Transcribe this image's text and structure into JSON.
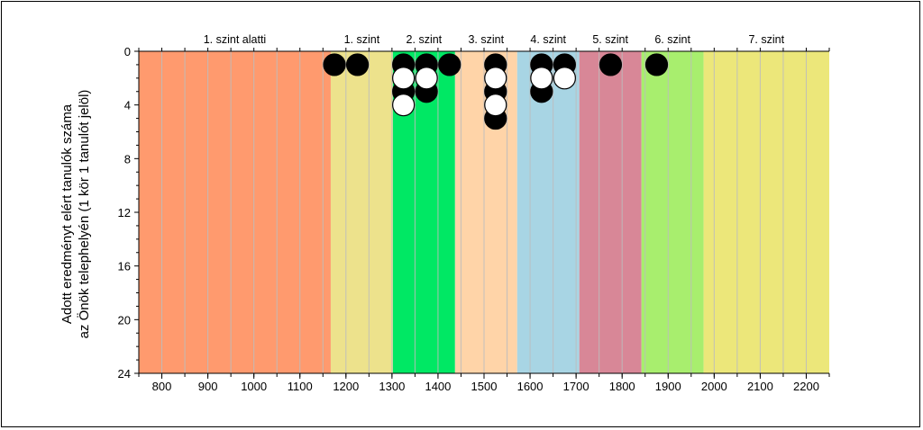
{
  "chart_data": {
    "type": "scatter",
    "title": "",
    "ylabel_lines": [
      "Adott eredményt elért tanulók száma",
      "az Önök telephelyén (1 kör 1 tanulót jelöl)"
    ],
    "xlabel": "",
    "xlim": [
      750,
      2250
    ],
    "ylim": [
      24,
      0
    ],
    "x_ticks": [
      800,
      900,
      1000,
      1100,
      1200,
      1300,
      1400,
      1500,
      1600,
      1700,
      1800,
      1900,
      2000,
      2100,
      2200
    ],
    "y_ticks": [
      0,
      4,
      8,
      12,
      16,
      20,
      24
    ],
    "minor_gridlines_x_step": 50,
    "grid": true,
    "bands": [
      {
        "label": "1. szint alatti",
        "from": 750,
        "to": 1167,
        "color": "#ff9a6e"
      },
      {
        "label": "1. szint",
        "from": 1167,
        "to": 1302,
        "color": "#ede28c"
      },
      {
        "label": "2. szint",
        "from": 1302,
        "to": 1437,
        "color": "#00e864"
      },
      {
        "label": "3. szint",
        "from": 1437,
        "to": 1572,
        "color": "#ffd4a8"
      },
      {
        "label": "4. szint",
        "from": 1572,
        "to": 1707,
        "color": "#a8d5e4"
      },
      {
        "label": "5. szint",
        "from": 1707,
        "to": 1842,
        "color": "#d88797"
      },
      {
        "label": "6. szint",
        "from": 1842,
        "to": 1977,
        "color": "#a8ee6e"
      },
      {
        "label": "7. szint",
        "from": 1977,
        "to": 2250,
        "color": "#ece77a"
      }
    ],
    "series": [
      {
        "marker": "filled-circle",
        "color": "#000000",
        "points": [
          {
            "x": 1175,
            "y": 1
          },
          {
            "x": 1225,
            "y": 1
          },
          {
            "x": 1325,
            "y": 1
          },
          {
            "x": 1375,
            "y": 1
          },
          {
            "x": 1425,
            "y": 1
          },
          {
            "x": 1325,
            "y": 3
          },
          {
            "x": 1375,
            "y": 3
          },
          {
            "x": 1525,
            "y": 1
          },
          {
            "x": 1525,
            "y": 3
          },
          {
            "x": 1525,
            "y": 5
          },
          {
            "x": 1625,
            "y": 1
          },
          {
            "x": 1675,
            "y": 1
          },
          {
            "x": 1625,
            "y": 3
          },
          {
            "x": 1775,
            "y": 1
          },
          {
            "x": 1875,
            "y": 1
          }
        ]
      },
      {
        "marker": "open-circle",
        "color": "#000000",
        "points": [
          {
            "x": 1325,
            "y": 2
          },
          {
            "x": 1375,
            "y": 2
          },
          {
            "x": 1325,
            "y": 4
          },
          {
            "x": 1525,
            "y": 2
          },
          {
            "x": 1525,
            "y": 4
          },
          {
            "x": 1625,
            "y": 2
          },
          {
            "x": 1675,
            "y": 2
          }
        ]
      }
    ]
  }
}
